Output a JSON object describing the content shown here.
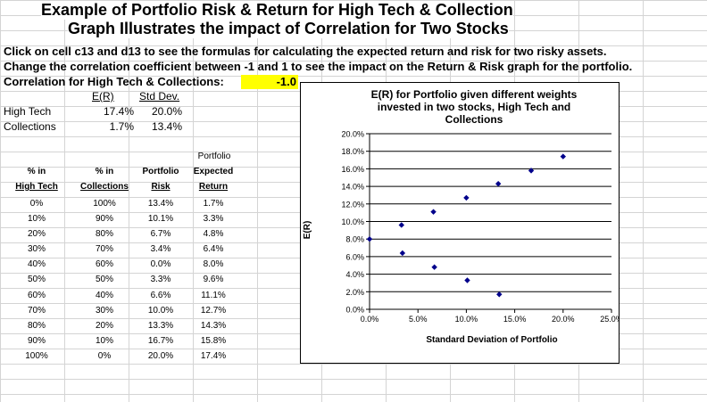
{
  "header": {
    "title_line1": "Example of Portfolio Risk & Return for High Tech & Collection",
    "title_line2": "Graph Illustrates the impact of Correlation for Two Stocks",
    "instruction1": "Click on cell c13 and d13 to see the formulas for calculating the expected return and risk for two risky assets.",
    "instruction2": "Change the correlation coefficient between -1 and 1 to see the impact on the Return & Risk graph for the portfolio.",
    "correlation_label": "Correlation for High Tech & Collections:",
    "correlation_value": "-1.0"
  },
  "assets": {
    "er_header": "E(R)",
    "sd_header": "Std Dev.",
    "rows": [
      {
        "name": "High Tech",
        "er": "17.4%",
        "sd": "20.0%"
      },
      {
        "name": "Collections",
        "er": "1.7%",
        "sd": "13.4%"
      }
    ]
  },
  "table": {
    "headers": {
      "col1": [
        "% in",
        "High Tech"
      ],
      "col2": [
        "% in",
        "Collections"
      ],
      "col3": [
        "Portfolio",
        "Risk"
      ],
      "col4": [
        "Portfolio",
        "Expected",
        "Return"
      ]
    },
    "rows": [
      {
        "ht": "0%",
        "col": "100%",
        "risk": "13.4%",
        "ret": "1.7%"
      },
      {
        "ht": "10%",
        "col": "90%",
        "risk": "10.1%",
        "ret": "3.3%"
      },
      {
        "ht": "20%",
        "col": "80%",
        "risk": "6.7%",
        "ret": "4.8%"
      },
      {
        "ht": "30%",
        "col": "70%",
        "risk": "3.4%",
        "ret": "6.4%"
      },
      {
        "ht": "40%",
        "col": "60%",
        "risk": "0.0%",
        "ret": "8.0%"
      },
      {
        "ht": "50%",
        "col": "50%",
        "risk": "3.3%",
        "ret": "9.6%"
      },
      {
        "ht": "60%",
        "col": "40%",
        "risk": "6.6%",
        "ret": "11.1%"
      },
      {
        "ht": "70%",
        "col": "30%",
        "risk": "10.0%",
        "ret": "12.7%"
      },
      {
        "ht": "80%",
        "col": "20%",
        "risk": "13.3%",
        "ret": "14.3%"
      },
      {
        "ht": "90%",
        "col": "10%",
        "risk": "16.7%",
        "ret": "15.8%"
      },
      {
        "ht": "100%",
        "col": "0%",
        "risk": "20.0%",
        "ret": "17.4%"
      }
    ]
  },
  "chart_data": {
    "type": "scatter",
    "title": "E(R) for Portfolio given different weights invested in two stocks, High Tech and Collections",
    "title_lines": [
      "E(R) for Portfolio given different weights",
      "invested in two stocks, High Tech and",
      "Collections"
    ],
    "xlabel": "Standard Deviation of Portfolio",
    "ylabel": "E(R)",
    "xlim": [
      0,
      25
    ],
    "ylim": [
      0,
      20
    ],
    "xticks": [
      0,
      5,
      10,
      15,
      20,
      25
    ],
    "yticks": [
      0,
      2,
      4,
      6,
      8,
      10,
      12,
      14,
      16,
      18,
      20
    ],
    "xtick_labels": [
      "0.0%",
      "5.0%",
      "10.0%",
      "15.0%",
      "20.0%",
      "25.0%"
    ],
    "ytick_labels": [
      "0.0%",
      "2.0%",
      "4.0%",
      "6.0%",
      "8.0%",
      "10.0%",
      "12.0%",
      "14.0%",
      "16.0%",
      "18.0%",
      "20.0%"
    ],
    "marker_color": "#00008b",
    "grid": "horizontal",
    "points": [
      {
        "x": 13.4,
        "y": 1.7
      },
      {
        "x": 10.1,
        "y": 3.3
      },
      {
        "x": 6.7,
        "y": 4.8
      },
      {
        "x": 3.4,
        "y": 6.4
      },
      {
        "x": 0.0,
        "y": 8.0
      },
      {
        "x": 3.3,
        "y": 9.6
      },
      {
        "x": 6.6,
        "y": 11.1
      },
      {
        "x": 10.0,
        "y": 12.7
      },
      {
        "x": 13.3,
        "y": 14.3
      },
      {
        "x": 16.7,
        "y": 15.8
      },
      {
        "x": 20.0,
        "y": 17.4
      }
    ]
  }
}
